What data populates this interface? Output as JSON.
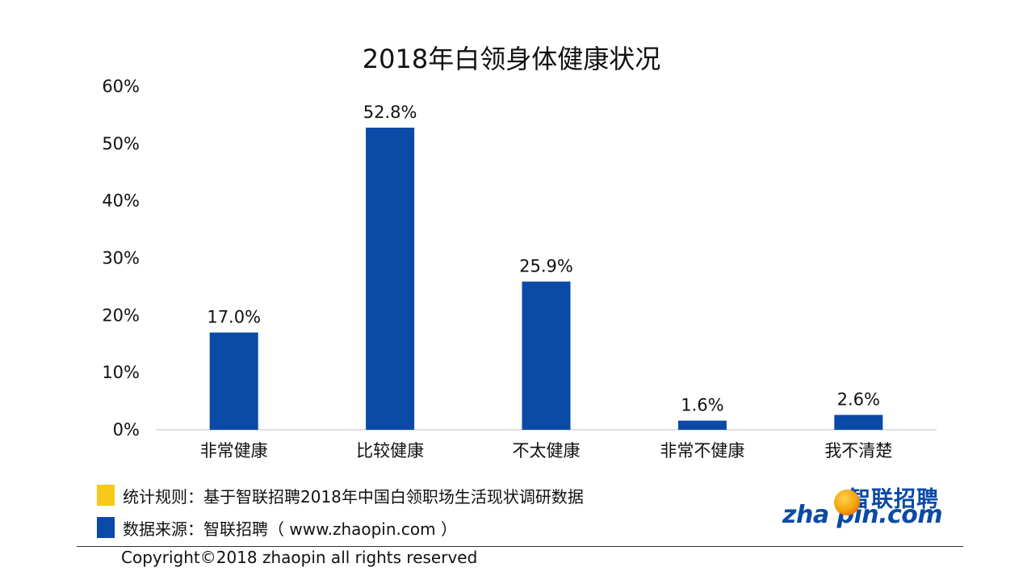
{
  "chart_data": {
    "type": "bar",
    "title": "2018年白领身体健康状况",
    "categories": [
      "非常健康",
      "比较健康",
      "不太健康",
      "非常不健康",
      "我不清楚"
    ],
    "values": [
      17.0,
      52.8,
      25.9,
      1.6,
      2.6
    ],
    "data_labels": [
      "17.0%",
      "52.8%",
      "25.9%",
      "1.6%",
      "2.6%"
    ],
    "ylim": [
      0,
      60
    ],
    "yticks": [
      0,
      10,
      20,
      30,
      40,
      50,
      60
    ],
    "ytick_labels": [
      "0%",
      "10%",
      "20%",
      "30%",
      "40%",
      "50%",
      "60%"
    ],
    "xlabel": "",
    "ylabel": "",
    "grid": false,
    "bar_color": "#0b4aa6"
  },
  "notes": {
    "rule_label": "统计规则：基于智联招聘2018年中国白领职场生活现状调研数据",
    "rule_color": "#f7c91a",
    "source_label": "数据来源：智联招聘（ www.zhaopin.com ）",
    "source_color": "#0b4aa6"
  },
  "footer": {
    "copyright": "Copyright©2018 zhaopin all rights reserved"
  },
  "logo": {
    "cn_text": "智联招聘",
    "en_text": "zha pin.com"
  }
}
